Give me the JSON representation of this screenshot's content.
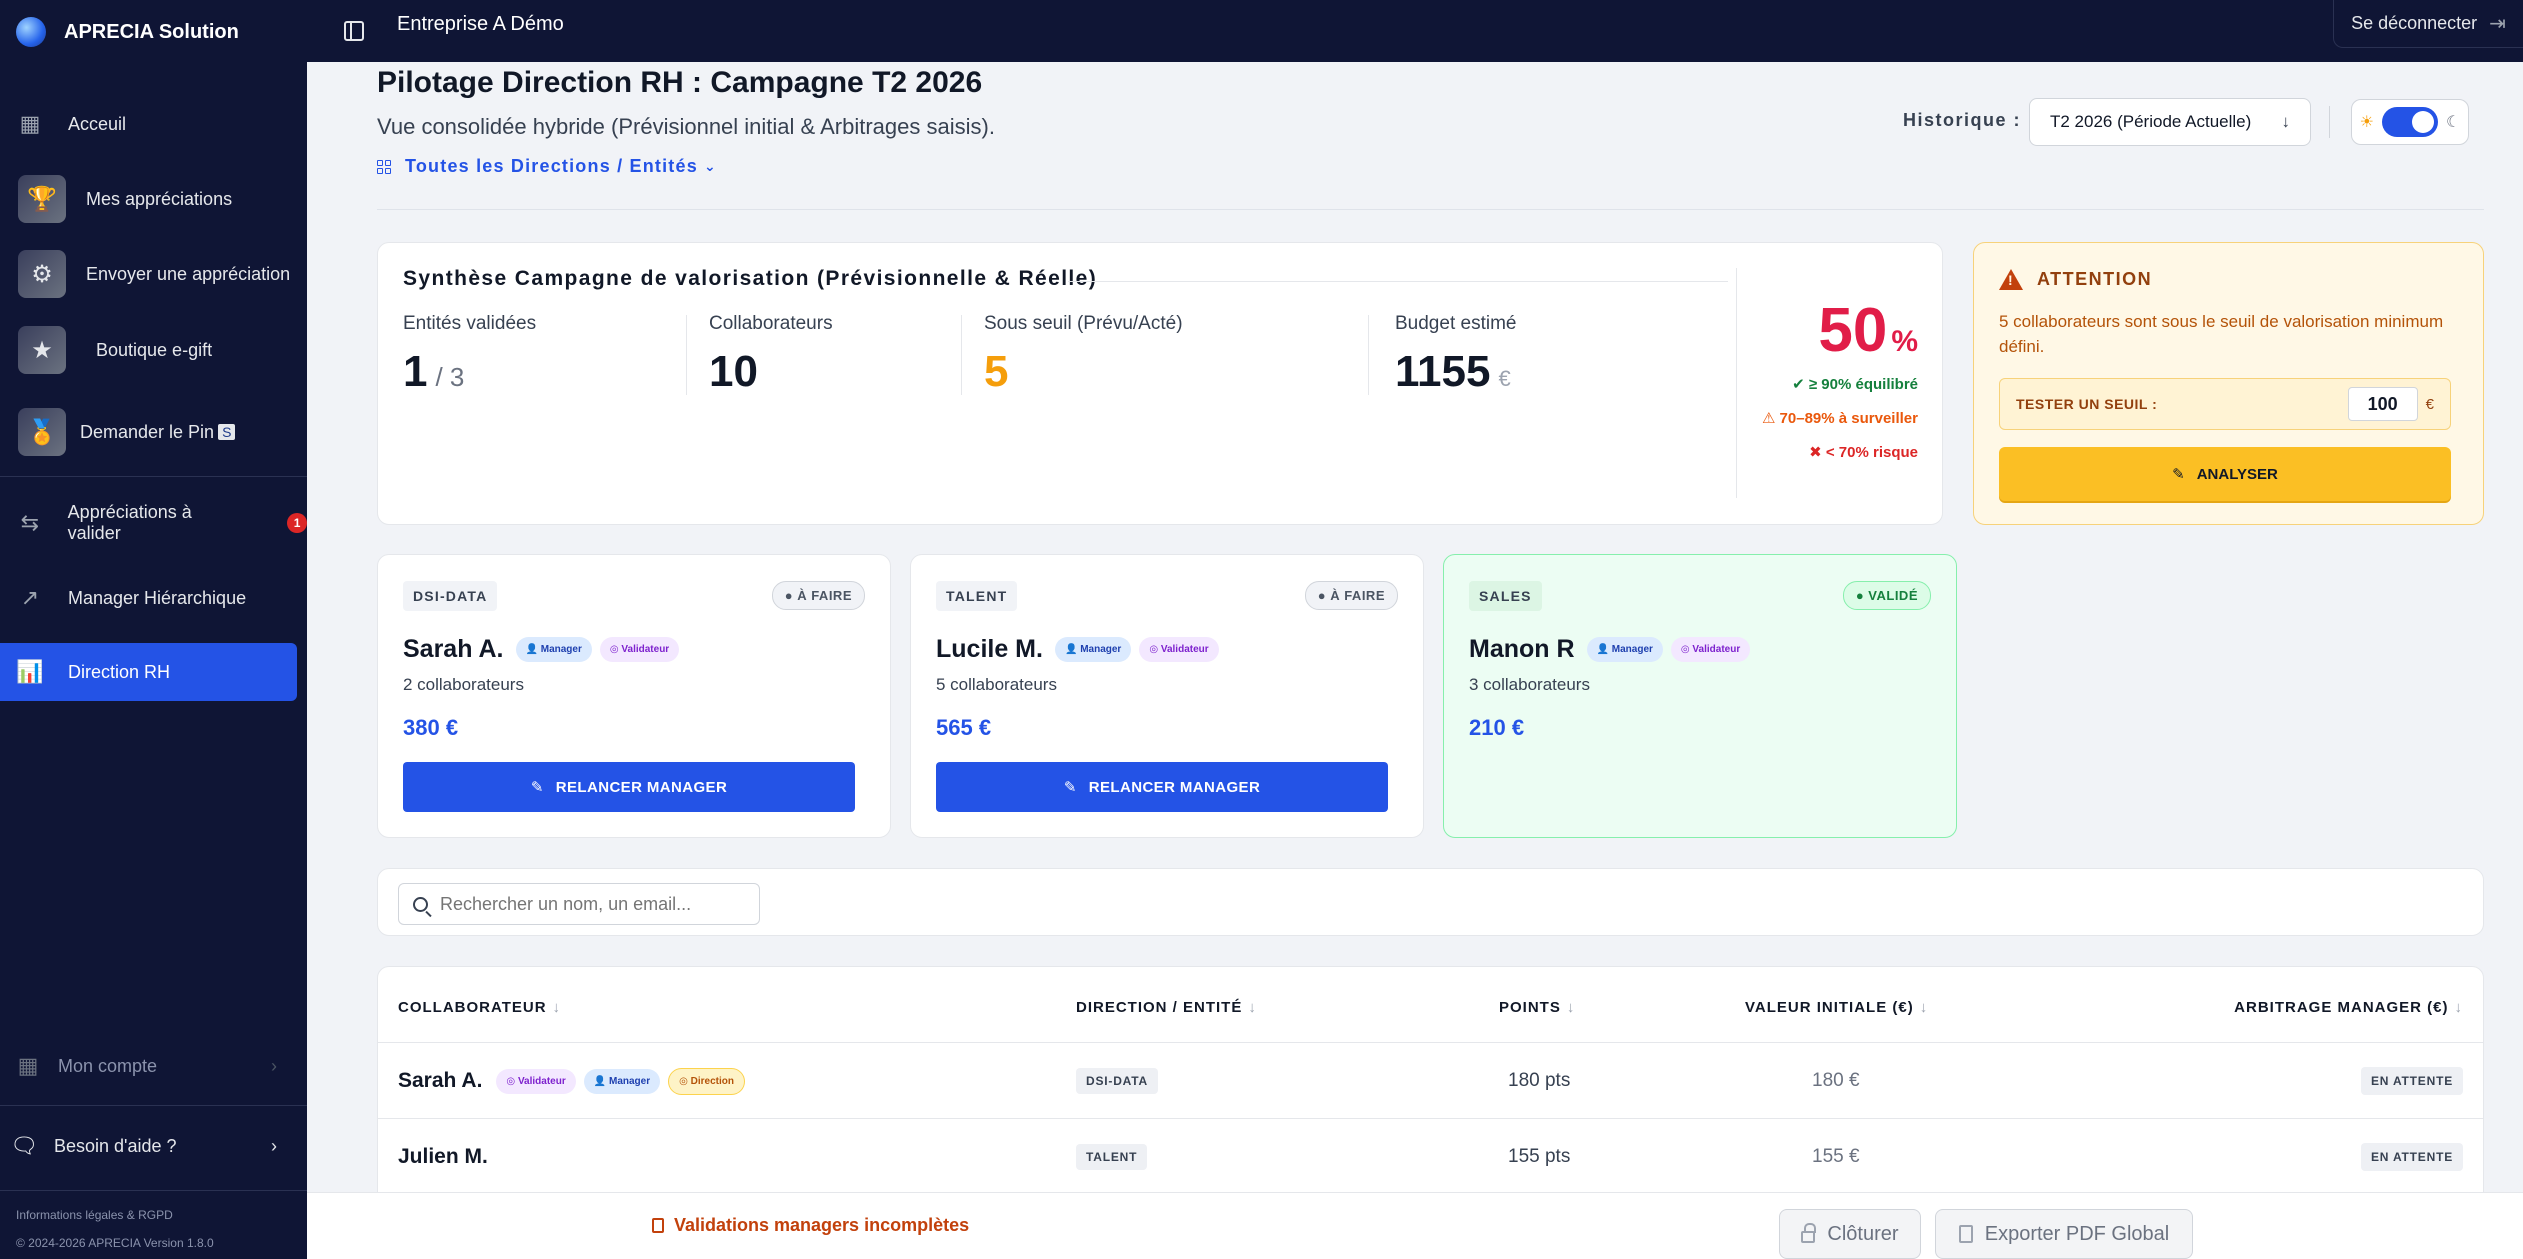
{
  "brand": {
    "name": "APRECIA Solution"
  },
  "sidebar": {
    "items": [
      {
        "label": "Acceuil"
      },
      {
        "label": "Mes appréciations"
      },
      {
        "label": "Envoyer une appréciation"
      },
      {
        "label": "Boutique e-gift"
      },
      {
        "label": "Demander le Pin"
      },
      {
        "label": "Appréciations à valider",
        "badge": "1"
      },
      {
        "label": "Manager Hiérarchique"
      },
      {
        "label": "Direction RH",
        "active": true
      }
    ],
    "account": "Mon compte",
    "help": "Besoin d'aide ?",
    "legal": "Informations légales & RGPD",
    "copyright": "© 2024-2026 APRECIA Version 1.8.0"
  },
  "topbar": {
    "title": "Entreprise A Démo",
    "logout": "Se déconnecter"
  },
  "header": {
    "title": "Pilotage Direction RH : Campagne T2 2026",
    "subtitle": "Vue consolidée hybride (Prévisionnel initial & Arbitrages saisis).",
    "scope": "Toutes les Directions / Entités",
    "history_label": "Historique :",
    "history_value": "T2 2026 (Période Actuelle)"
  },
  "summary": {
    "title": "Synthèse Campagne de valorisation (Prévisionnelle & Réelle)",
    "stats": {
      "entities_label": "Entités validées",
      "entities_value": "1",
      "entities_total": "/ 3",
      "collab_label": "Collaborateurs",
      "collab_value": "10",
      "below_label": "Sous seuil (Prévu/Acté)",
      "below_value": "5",
      "budget_label": "Budget estimé",
      "budget_value": "1155",
      "budget_unit": "€"
    },
    "percent": "50",
    "percent_sym": "%",
    "legend": {
      "green": "✔ ≥ 90% équilibré",
      "orange": "⚠ 70–89% à surveiller",
      "red": "✖ < 70% risque"
    }
  },
  "attention": {
    "title": "ATTENTION",
    "text": "5 collaborateurs sont sous le seuil de valorisation minimum défini.",
    "threshold_label": "TESTER UN SEUIL :",
    "threshold_value": "100",
    "threshold_unit": "€",
    "analyze": "ANALYSER"
  },
  "entities": [
    {
      "tag": "DSI-DATA",
      "status": "À FAIRE",
      "name": "Sarah A.",
      "manager": "Manager",
      "validator": "Validateur",
      "count": "2 collaborateurs",
      "amount": "380 €",
      "action": "RELANCER MANAGER"
    },
    {
      "tag": "TALENT",
      "status": "À FAIRE",
      "name": "Lucile M.",
      "manager": "Manager",
      "validator": "Validateur",
      "count": "5 collaborateurs",
      "amount": "565 €",
      "action": "RELANCER MANAGER"
    },
    {
      "tag": "SALES",
      "status": "VALIDÉ",
      "name": "Manon R",
      "manager": "Manager",
      "validator": "Validateur",
      "count": "3 collaborateurs",
      "amount": "210 €"
    }
  ],
  "search": {
    "placeholder": "Rechercher un nom, un email..."
  },
  "table": {
    "headers": [
      "COLLABORATEUR",
      "DIRECTION / ENTITÉ",
      "POINTS",
      "VALEUR INITIALE (€)",
      "ARBITRAGE MANAGER (€)"
    ],
    "rows": [
      {
        "name": "Sarah A.",
        "roles": [
          "Validateur",
          "Manager",
          "Direction"
        ],
        "dept": "DSI-DATA",
        "points": "180 pts",
        "value": "180 €",
        "arbitrage": "EN ATTENTE"
      },
      {
        "name": "Julien M.",
        "roles": [],
        "dept": "TALENT",
        "points": "155 pts",
        "value": "155 €",
        "arbitrage": "EN ATTENTE"
      }
    ]
  },
  "footer": {
    "warning": "Validations managers incomplètes",
    "close": "Clôturer",
    "export": "Exporter PDF Global"
  }
}
